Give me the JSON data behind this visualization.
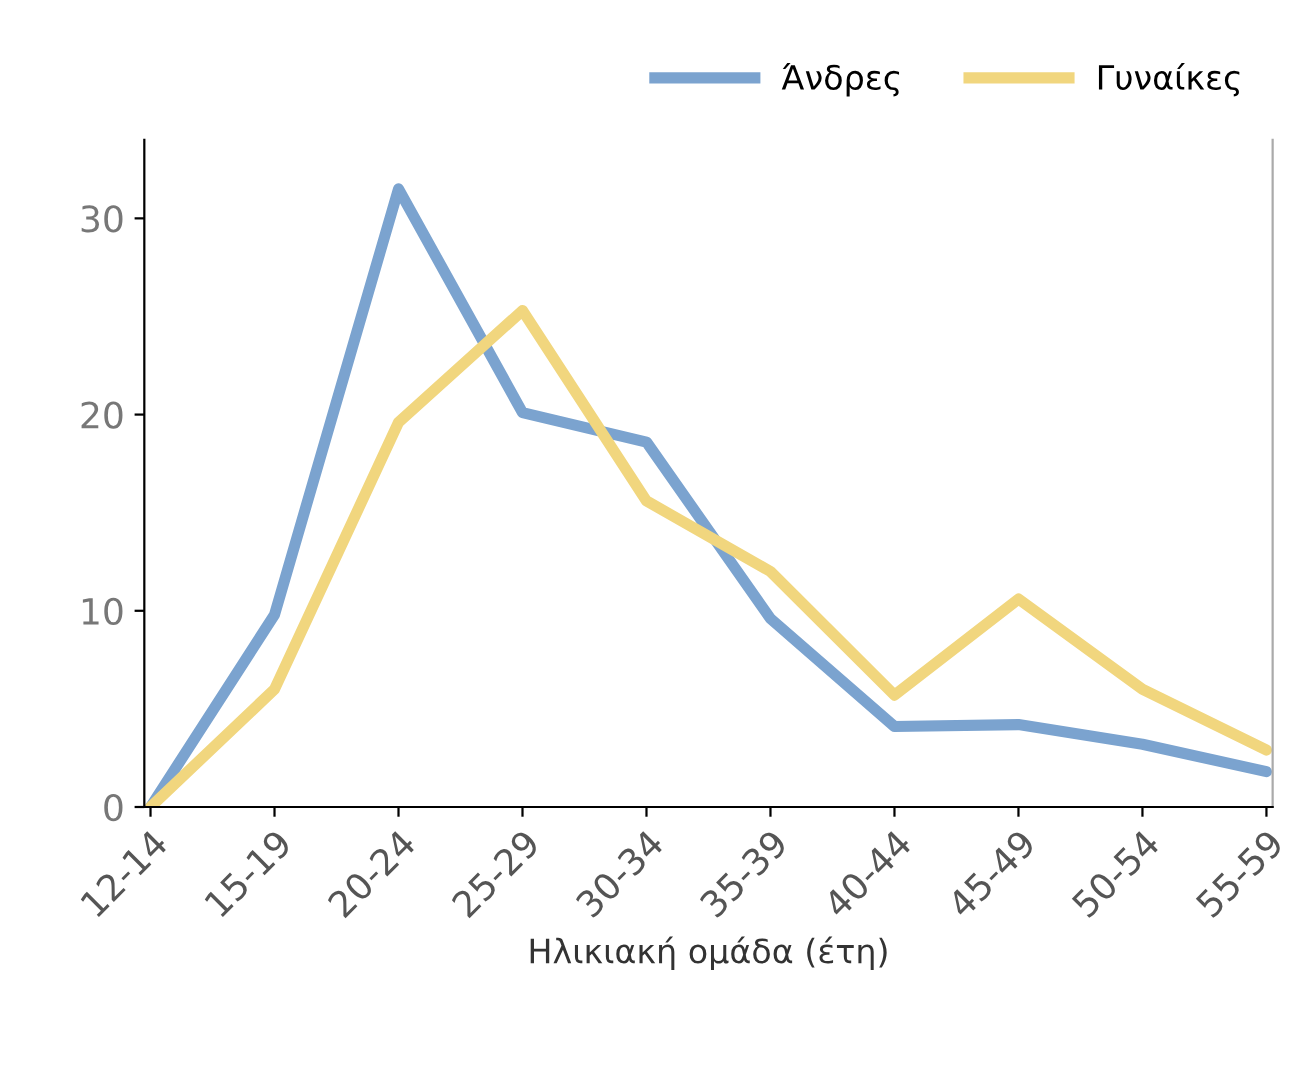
{
  "chart_data": {
    "type": "line",
    "xlabel": "Ηλικιακή ομάδα (έτη)",
    "categories": [
      "12-14",
      "15-19",
      "20-24",
      "25-29",
      "30-34",
      "35-39",
      "40-44",
      "45-49",
      "50-54",
      "55-59"
    ],
    "series": [
      {
        "name": "Άνδρες",
        "color": "#7ba3cf",
        "values": [
          0,
          9.8,
          31.5,
          20.1,
          18.6,
          9.6,
          4.1,
          4.2,
          3.2,
          1.8
        ]
      },
      {
        "name": "Γυναίκες",
        "color": "#f1d67e",
        "values": [
          0,
          6.0,
          19.6,
          25.3,
          15.6,
          12.0,
          5.7,
          10.6,
          6.0,
          2.9
        ]
      }
    ],
    "ylim": [
      0,
      34
    ],
    "yticks": [
      0,
      10,
      20,
      30
    ],
    "grid": false,
    "legend": "top right",
    "marker": "none",
    "line_style": "solid"
  }
}
